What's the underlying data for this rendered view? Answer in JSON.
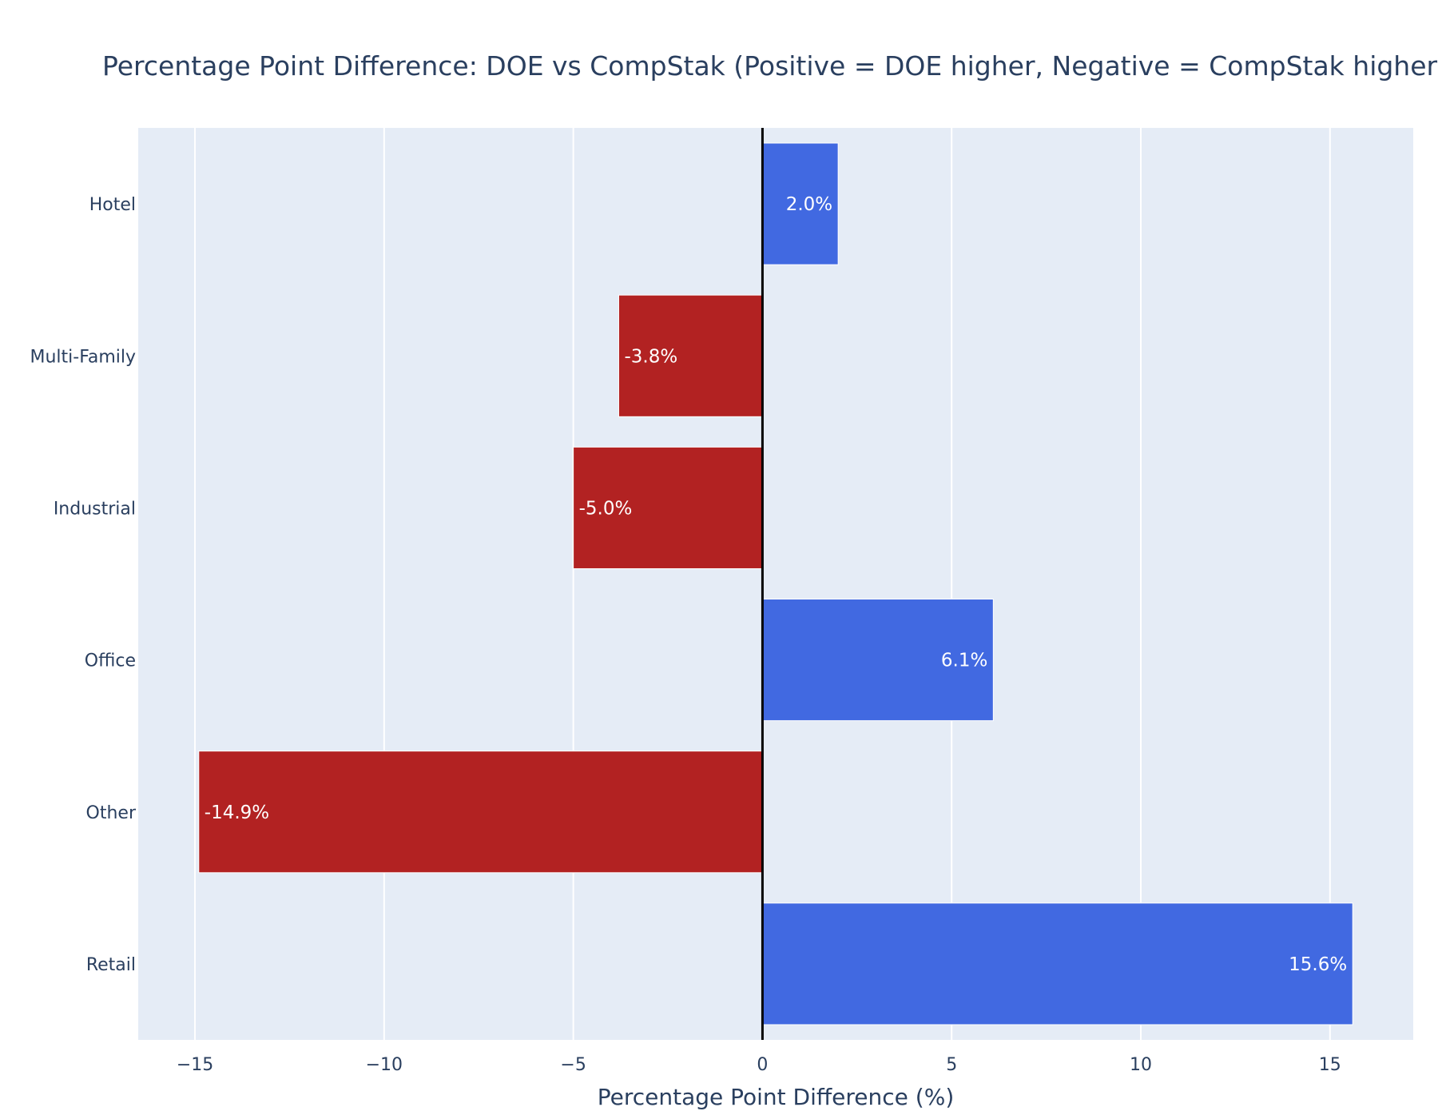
{
  "chart_data": {
    "type": "bar",
    "orientation": "horizontal",
    "title": "Percentage Point Difference: DOE vs CompStak (Positive = DOE higher, Negative = CompStak higher)",
    "xlabel": "Percentage Point Difference (%)",
    "ylabel": "",
    "categories": [
      "Retail",
      "Other",
      "Office",
      "Industrial",
      "Multi-Family",
      "Hotel"
    ],
    "values": [
      15.6,
      -14.9,
      6.1,
      -5.0,
      -3.8,
      2.0
    ],
    "labels": [
      "15.6%",
      "-14.9%",
      "6.1%",
      "-5.0%",
      "-3.8%",
      "2.0%"
    ],
    "xlim": [
      -16.5,
      17.2
    ],
    "xticks": [
      -15,
      -10,
      -5,
      0,
      5,
      10,
      15
    ],
    "xtick_labels": [
      "−15",
      "−10",
      "−5",
      "0",
      "5",
      "10",
      "15"
    ],
    "grid": true,
    "zero_line": true,
    "colors": {
      "positive": "#4169e1",
      "negative": "#b22222",
      "plot_background": "#e5ecf6",
      "grid": "#ffffff",
      "zero_line": "#000000",
      "text": "#2a3f5f"
    }
  }
}
